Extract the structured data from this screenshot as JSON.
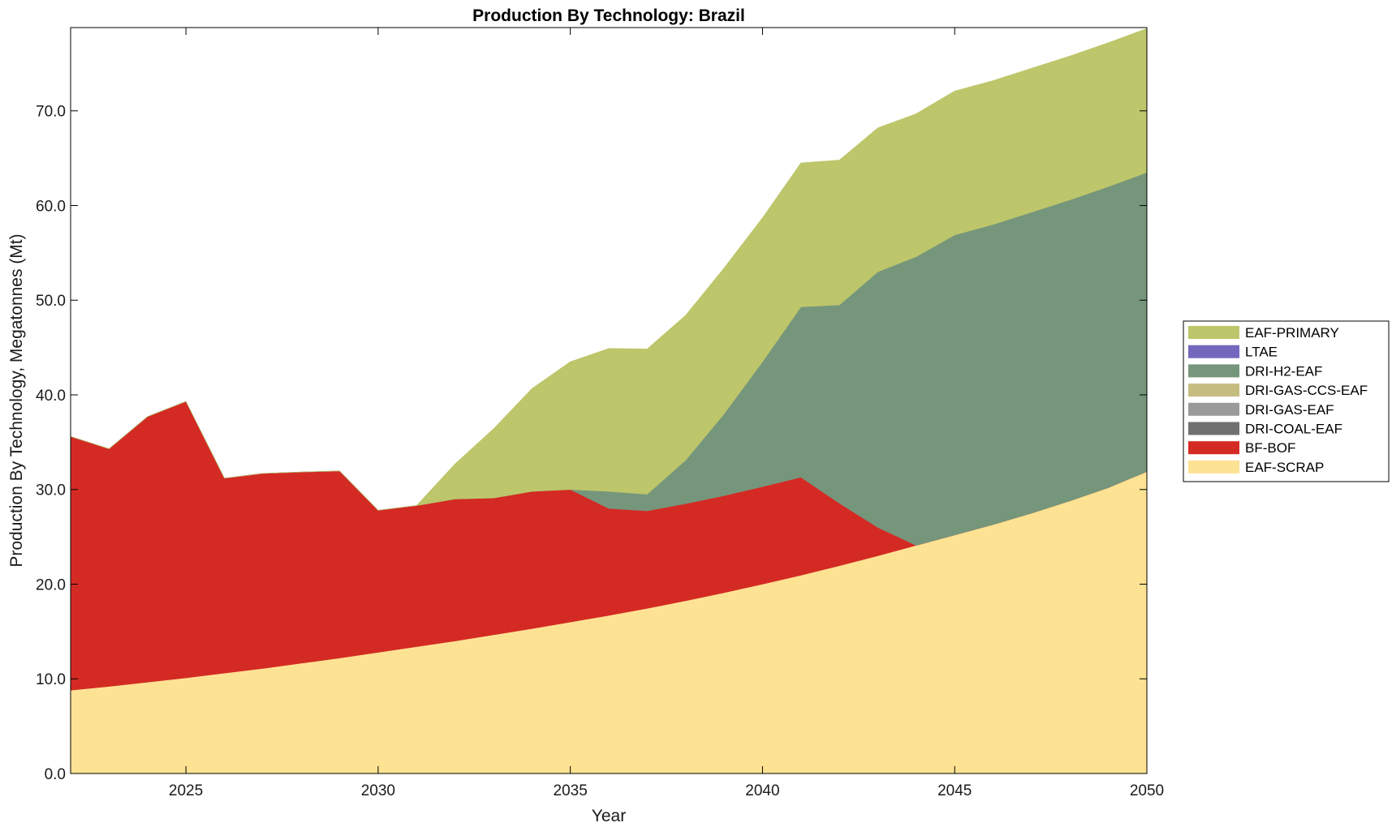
{
  "chart_data": {
    "type": "area",
    "stacked": true,
    "title": "Production By Technology: Brazil",
    "xlabel": "Year",
    "ylabel": "Production By Technology, Megatonnes (Mt)",
    "xlim": [
      2022,
      2050
    ],
    "ylim": [
      0,
      78.8
    ],
    "xticks": [
      2025,
      2030,
      2035,
      2040,
      2045,
      2050
    ],
    "xtick_labels": [
      "2025",
      "2030",
      "2035",
      "2040",
      "2045",
      "2050"
    ],
    "yticks": [
      0,
      10,
      20,
      30,
      40,
      50,
      60,
      70
    ],
    "ytick_labels": [
      "0.0",
      "10.0",
      "20.0",
      "30.0",
      "40.0",
      "50.0",
      "60.0",
      "70.0"
    ],
    "legend_position": "right",
    "x": [
      2022,
      2023,
      2024,
      2025,
      2026,
      2027,
      2028,
      2029,
      2030,
      2031,
      2032,
      2033,
      2034,
      2035,
      2036,
      2037,
      2038,
      2039,
      2040,
      2041,
      2042,
      2043,
      2044,
      2045,
      2046,
      2047,
      2048,
      2049,
      2050
    ],
    "series": [
      {
        "name": "EAF-SCRAP",
        "color": "#FDE293",
        "values": [
          8.8,
          9.2,
          9.65,
          10.1,
          10.6,
          11.1,
          11.65,
          12.2,
          12.8,
          13.4,
          14.0,
          14.65,
          15.3,
          16.0,
          16.7,
          17.45,
          18.25,
          19.1,
          20.0,
          20.95,
          21.95,
          23.0,
          24.1,
          25.2,
          26.3,
          27.5,
          28.8,
          30.2,
          31.9
        ]
      },
      {
        "name": "BF-BOF",
        "color": "#D42A24",
        "values": [
          26.8,
          25.1,
          28.05,
          29.2,
          20.6,
          20.6,
          20.2,
          19.75,
          15.0,
          14.9,
          15.0,
          14.45,
          14.5,
          14.0,
          11.3,
          10.3,
          10.25,
          10.25,
          10.3,
          10.35,
          6.6,
          3.0,
          0.0,
          0,
          0,
          0,
          0,
          0,
          0
        ]
      },
      {
        "name": "DRI-COAL-EAF",
        "color": "#707070",
        "values": [
          0,
          0,
          0,
          0,
          0,
          0,
          0,
          0,
          0,
          0,
          0,
          0,
          0,
          0,
          0,
          0,
          0,
          0,
          0,
          0,
          0,
          0,
          0,
          0,
          0,
          0,
          0,
          0,
          0
        ]
      },
      {
        "name": "DRI-GAS-EAF",
        "color": "#9A9A9A",
        "values": [
          0,
          0,
          0,
          0,
          0,
          0,
          0,
          0,
          0,
          0,
          0,
          0,
          0,
          0,
          0,
          0,
          0,
          0,
          0,
          0,
          0,
          0,
          0,
          0,
          0,
          0,
          0,
          0,
          0
        ]
      },
      {
        "name": "DRI-GAS-CCS-EAF",
        "color": "#C5BC80",
        "values": [
          0,
          0,
          0,
          0,
          0,
          0,
          0,
          0,
          0,
          0,
          0,
          0,
          0,
          0,
          0,
          0,
          0,
          0,
          0,
          0,
          0,
          0,
          0,
          0,
          0,
          0,
          0,
          0,
          0
        ]
      },
      {
        "name": "DRI-H2-EAF",
        "color": "#76967C",
        "values": [
          0,
          0,
          0,
          0,
          0,
          0,
          0,
          0,
          0,
          0,
          0,
          0,
          0,
          0,
          1.8,
          1.75,
          4.6,
          8.65,
          13.2,
          18.0,
          20.95,
          27.0,
          30.5,
          31.7,
          31.7,
          31.8,
          31.8,
          31.8,
          31.6
        ]
      },
      {
        "name": "LTAE",
        "color": "#7367BE",
        "values": [
          0,
          0,
          0,
          0,
          0,
          0,
          0,
          0,
          0,
          0,
          0,
          0,
          0,
          0,
          0,
          0,
          0,
          0,
          0,
          0,
          0,
          0,
          0,
          0,
          0,
          0,
          0,
          0,
          0
        ]
      },
      {
        "name": "EAF-PRIMARY",
        "color": "#BDC66A",
        "values": [
          0,
          0,
          0,
          0,
          0,
          0,
          0,
          0,
          0,
          0,
          3.7,
          7.3,
          10.85,
          13.5,
          15.1,
          15.35,
          15.3,
          15.4,
          15.2,
          15.2,
          15.3,
          15.2,
          15.1,
          15.2,
          15.2,
          15.2,
          15.2,
          15.2,
          15.2
        ]
      }
    ],
    "legend_order": [
      "EAF-PRIMARY",
      "LTAE",
      "DRI-H2-EAF",
      "DRI-GAS-CCS-EAF",
      "DRI-GAS-EAF",
      "DRI-COAL-EAF",
      "BF-BOF",
      "EAF-SCRAP"
    ]
  }
}
